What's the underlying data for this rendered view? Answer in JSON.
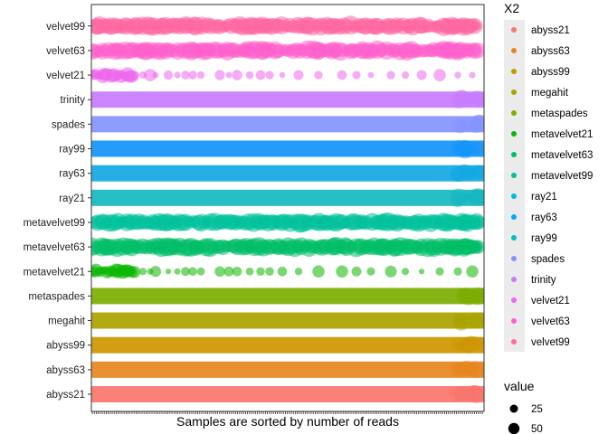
{
  "chart_data": {
    "type": "scatter",
    "title": "",
    "xlabel": "Samples are sorted by number of reads",
    "ylabel": "",
    "categories": [
      "abyss21",
      "abyss63",
      "abyss99",
      "megahit",
      "metaspades",
      "metavelvet21",
      "metavelvet63",
      "metavelvet99",
      "ray21",
      "ray63",
      "ray99",
      "spades",
      "trinity",
      "velvet21",
      "velvet63",
      "velvet99"
    ],
    "series": [
      {
        "name": "abyss21",
        "color": "#F8766D",
        "pattern": "dense"
      },
      {
        "name": "abyss63",
        "color": "#E7851E",
        "pattern": "dense"
      },
      {
        "name": "abyss99",
        "color": "#CD9600",
        "pattern": "dense"
      },
      {
        "name": "megahit",
        "color": "#ABA300",
        "pattern": "dense"
      },
      {
        "name": "metaspades",
        "color": "#7CAE00",
        "pattern": "dense"
      },
      {
        "name": "metavelvet21",
        "color": "#0CB702",
        "pattern": "sparse"
      },
      {
        "name": "metavelvet63",
        "color": "#00BE67",
        "pattern": "medium"
      },
      {
        "name": "metavelvet99",
        "color": "#00C19A",
        "pattern": "medium"
      },
      {
        "name": "ray21",
        "color": "#00B8E7",
        "pattern": "dense"
      },
      {
        "name": "ray63",
        "color": "#00A9FF",
        "pattern": "dense"
      },
      {
        "name": "ray99",
        "color": "#00BFC4",
        "pattern": "dense"
      },
      {
        "name": "spades",
        "color": "#8494FF",
        "pattern": "dense"
      },
      {
        "name": "trinity",
        "color": "#C77CFF",
        "pattern": "dense"
      },
      {
        "name": "velvet21",
        "color": "#ED68ED",
        "pattern": "sparse"
      },
      {
        "name": "velvet63",
        "color": "#FF61CC",
        "pattern": "medium"
      },
      {
        "name": "velvet99",
        "color": "#FF68A1",
        "pattern": "medium"
      }
    ],
    "bar_colors": {
      "ray21": "#16B8C0",
      "ray63": "#13A8E2",
      "ray99": "#1494FA"
    },
    "legend": {
      "position": "right",
      "color_title": "X2",
      "size_title": "value",
      "size_breaks": [
        25,
        50
      ]
    },
    "grid": false
  }
}
